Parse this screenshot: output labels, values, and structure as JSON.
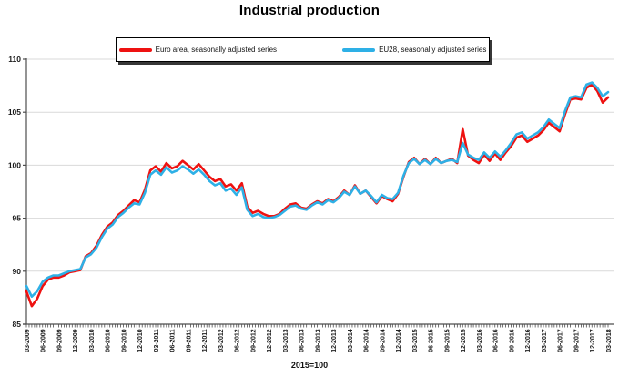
{
  "page": {
    "title": "Industrial production",
    "footnote": "2015=100"
  },
  "chart_data": {
    "type": "line",
    "title": "Industrial production",
    "note": "2015=100",
    "grid": "horizontal-on",
    "legend_position": "top-center",
    "ylim": [
      85,
      110
    ],
    "y_ticks": [
      85,
      90,
      95,
      100,
      105,
      110
    ],
    "x_range": "monthly from 03-2009 to 03-2018",
    "x_tick_labels": [
      "03-2009",
      "06-2009",
      "09-2009",
      "12-2009",
      "03-2010",
      "06-2010",
      "09-2010",
      "12-2010",
      "03-2011",
      "06-2011",
      "09-2011",
      "12-2011",
      "03-2012",
      "06-2012",
      "09-2012",
      "12-2012",
      "03-2013",
      "06-2013",
      "09-2013",
      "12-2013",
      "03-2014",
      "06-2014",
      "09-2014",
      "12-2014",
      "03-2015",
      "06-2015",
      "09-2015",
      "12-2015",
      "03-2016",
      "06-2016",
      "09-2016",
      "12-2016",
      "03-2017",
      "06-2017",
      "09-2017",
      "12-2017",
      "03-2018"
    ],
    "axis_color": "#4d4d4d",
    "gridline_color": "#d9d9d9",
    "series": [
      {
        "name": "Euro area, seasonally adjusted series",
        "color": "#ee1211",
        "values": [
          88.1,
          86.7,
          87.4,
          88.6,
          89.2,
          89.4,
          89.4,
          89.6,
          89.9,
          90.0,
          90.1,
          91.4,
          91.7,
          92.4,
          93.4,
          94.2,
          94.6,
          95.3,
          95.7,
          96.2,
          96.7,
          96.5,
          97.7,
          99.5,
          99.9,
          99.4,
          100.2,
          99.7,
          99.9,
          100.4,
          100.0,
          99.6,
          100.1,
          99.5,
          98.9,
          98.5,
          98.7,
          98.0,
          98.2,
          97.6,
          98.3,
          96.1,
          95.5,
          95.7,
          95.4,
          95.2,
          95.2,
          95.4,
          95.9,
          96.3,
          96.4,
          96.0,
          95.9,
          96.3,
          96.6,
          96.4,
          96.8,
          96.6,
          97.0,
          97.6,
          97.2,
          98.1,
          97.3,
          97.6,
          97.0,
          96.4,
          97.1,
          96.8,
          96.6,
          97.3,
          98.9,
          100.3,
          100.7,
          100.1,
          100.6,
          100.1,
          100.7,
          100.2,
          100.4,
          100.6,
          100.2,
          103.4,
          100.9,
          100.5,
          100.2,
          101.0,
          100.4,
          101.1,
          100.5,
          101.2,
          101.8,
          102.6,
          102.8,
          102.2,
          102.5,
          102.8,
          103.3,
          104.0,
          103.6,
          103.2,
          104.8,
          106.2,
          106.3,
          106.2,
          107.3,
          107.6,
          107.0,
          105.9,
          106.4
        ]
      },
      {
        "name": "EU28, seasonally adjusted series",
        "color": "#2eb0e6",
        "values": [
          88.6,
          87.6,
          88.1,
          89.0,
          89.4,
          89.6,
          89.6,
          89.8,
          90.0,
          90.1,
          90.2,
          91.3,
          91.6,
          92.2,
          93.2,
          94.0,
          94.4,
          95.1,
          95.5,
          96.0,
          96.4,
          96.3,
          97.4,
          99.1,
          99.5,
          99.1,
          99.8,
          99.3,
          99.5,
          99.9,
          99.6,
          99.2,
          99.6,
          99.1,
          98.5,
          98.1,
          98.3,
          97.6,
          97.8,
          97.2,
          97.9,
          95.8,
          95.2,
          95.4,
          95.1,
          95.0,
          95.1,
          95.3,
          95.7,
          96.1,
          96.2,
          95.9,
          95.8,
          96.2,
          96.5,
          96.3,
          96.7,
          96.5,
          96.9,
          97.5,
          97.2,
          98.0,
          97.3,
          97.6,
          97.1,
          96.5,
          97.2,
          96.9,
          96.8,
          97.4,
          99.0,
          100.2,
          100.6,
          100.1,
          100.5,
          100.1,
          100.6,
          100.2,
          100.4,
          100.5,
          100.3,
          102.1,
          101.0,
          100.7,
          100.5,
          101.2,
          100.7,
          101.3,
          100.8,
          101.4,
          102.1,
          102.9,
          103.1,
          102.5,
          102.8,
          103.1,
          103.6,
          104.3,
          103.9,
          103.5,
          105.1,
          106.4,
          106.5,
          106.4,
          107.6,
          107.8,
          107.3,
          106.5,
          106.9
        ]
      }
    ]
  }
}
